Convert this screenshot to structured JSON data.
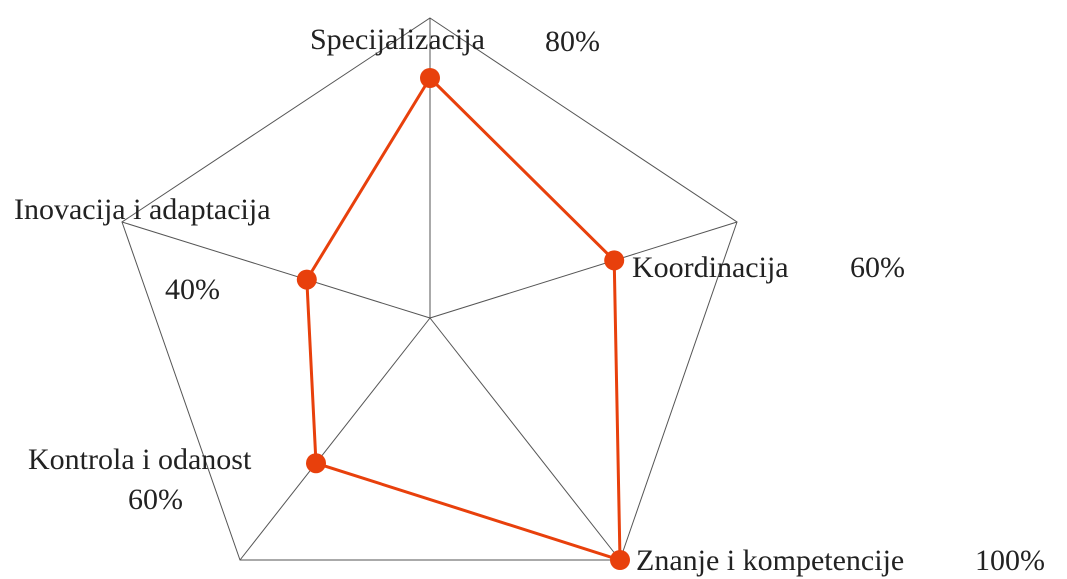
{
  "chart_data": {
    "type": "radar",
    "categories": [
      "Specijalizacija",
      "Koordinacija",
      "Znanje i kompetencije",
      "Kontrola i odanost",
      "Inovacija i adaptacija"
    ],
    "values": [
      80,
      60,
      100,
      60,
      40
    ],
    "value_labels": [
      "80%",
      "60%",
      "100%",
      "60%",
      "40%"
    ],
    "color": "#e8400c",
    "ylim": [
      0,
      100
    ]
  }
}
